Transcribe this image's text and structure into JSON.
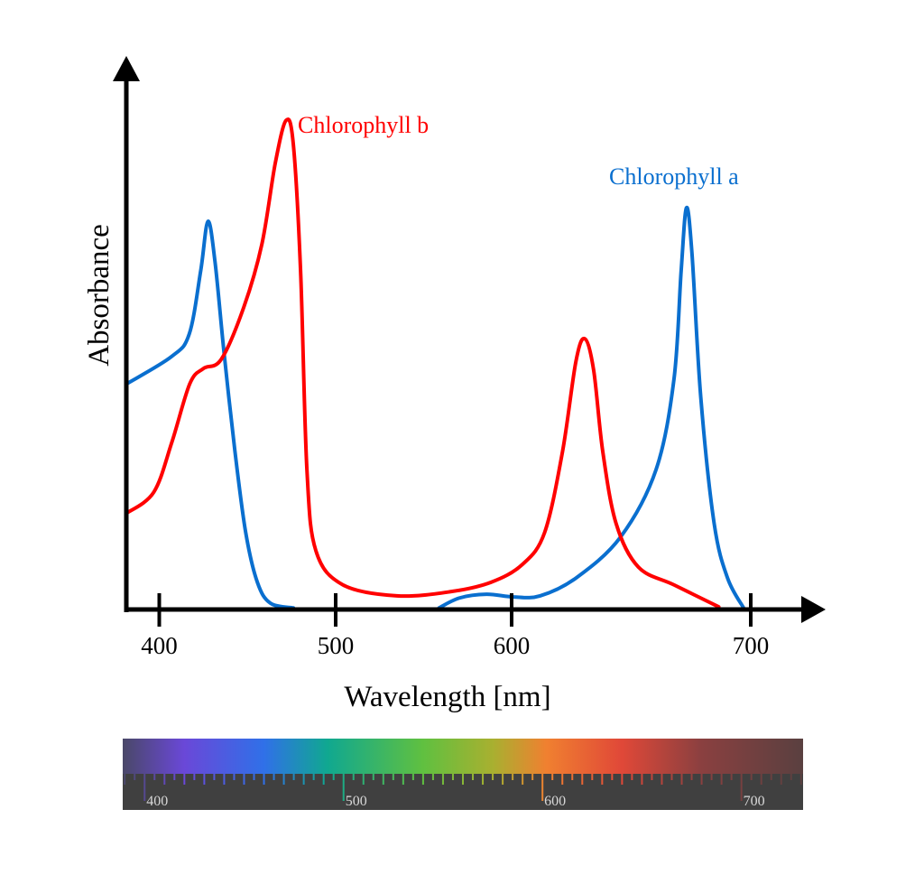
{
  "chart_data": {
    "type": "line",
    "title": "",
    "xlabel": "Wavelength [nm]",
    "ylabel": "Absorbance",
    "x_ticks": [
      400,
      500,
      600,
      700
    ],
    "xlim": [
      381,
      720
    ],
    "ylim": [
      0,
      1
    ],
    "grid": false,
    "legend": "inline labels",
    "series": [
      {
        "name": "Chlorophyll a",
        "color": "#0a6fcf",
        "segments": [
          [
            [
              381.6,
              0.431
            ],
            [
              407,
              0.483
            ],
            [
              417,
              0.526
            ],
            [
              423.5,
              0.647
            ],
            [
              427.6,
              0.741
            ],
            [
              431.6,
              0.664
            ],
            [
              436.7,
              0.491
            ],
            [
              442.9,
              0.302
            ],
            [
              449,
              0.147
            ],
            [
              455.6,
              0.052
            ],
            [
              463,
              0.012
            ],
            [
              476,
              0.003
            ]
          ],
          [
            [
              558.7,
              0.003
            ],
            [
              570.4,
              0.022
            ],
            [
              585.7,
              0.029
            ],
            [
              600.7,
              0.024
            ],
            [
              611.9,
              0.026
            ],
            [
              626.9,
              0.06
            ],
            [
              645.5,
              0.138
            ],
            [
              660.4,
              0.267
            ],
            [
              667.9,
              0.44
            ],
            [
              670.9,
              0.647
            ],
            [
              673.1,
              0.767
            ],
            [
              675.4,
              0.681
            ],
            [
              679.1,
              0.405
            ],
            [
              684.7,
              0.164
            ],
            [
              690.3,
              0.06
            ],
            [
              697,
              0.003
            ]
          ]
        ]
      },
      {
        "name": "Chlorophyll b",
        "color": "#ff0000",
        "segments": [
          [
            [
              381.6,
              0.184
            ],
            [
              396.9,
              0.224
            ],
            [
              407.1,
              0.319
            ],
            [
              417.3,
              0.431
            ],
            [
              425,
              0.46
            ],
            [
              435.2,
              0.478
            ],
            [
              448,
              0.578
            ],
            [
              458.2,
              0.698
            ],
            [
              465.8,
              0.853
            ],
            [
              471.9,
              0.934
            ],
            [
              476,
              0.888
            ],
            [
              480.1,
              0.647
            ],
            [
              483.7,
              0.267
            ],
            [
              488.8,
              0.112
            ],
            [
              504.1,
              0.047
            ],
            [
              534.7,
              0.026
            ],
            [
              565.3,
              0.034
            ],
            [
              588.3,
              0.052
            ],
            [
              604.5,
              0.086
            ],
            [
              613.8,
              0.147
            ],
            [
              621.3,
              0.302
            ],
            [
              626.9,
              0.474
            ],
            [
              630.6,
              0.517
            ],
            [
              634.3,
              0.457
            ],
            [
              638.1,
              0.302
            ],
            [
              643.7,
              0.164
            ],
            [
              653,
              0.081
            ],
            [
              667.9,
              0.047
            ],
            [
              686.6,
              0.005
            ]
          ]
        ]
      }
    ]
  },
  "spectrum_bar": {
    "range_nm": [
      389,
      731
    ],
    "tick_labels": [
      "400",
      "500",
      "600",
      "700"
    ],
    "gradient": [
      {
        "nm": 389,
        "color": "#4a4868"
      },
      {
        "nm": 420,
        "color": "#6a48d8"
      },
      {
        "nm": 460,
        "color": "#3070e8"
      },
      {
        "nm": 492,
        "color": "#10a890"
      },
      {
        "nm": 540,
        "color": "#60c040"
      },
      {
        "nm": 575,
        "color": "#a8b030"
      },
      {
        "nm": 602,
        "color": "#f08030"
      },
      {
        "nm": 640,
        "color": "#e04838"
      },
      {
        "nm": 680,
        "color": "#8a4040"
      },
      {
        "nm": 731,
        "color": "#5a4040"
      }
    ],
    "scale_background": "#404040"
  }
}
